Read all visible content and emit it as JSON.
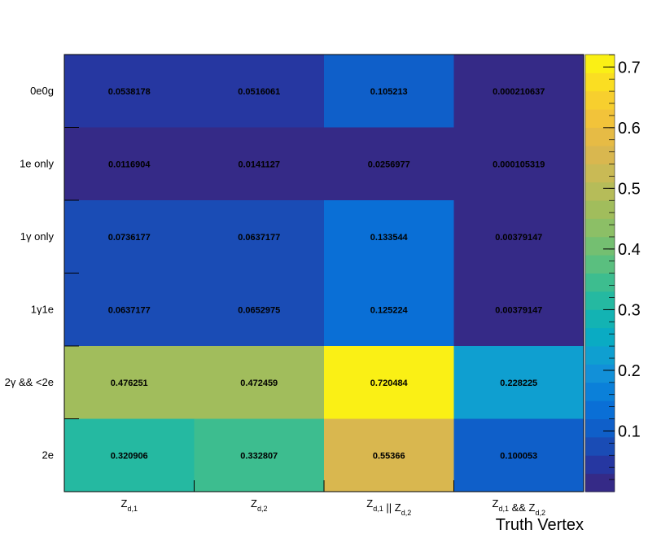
{
  "chart_data": {
    "type": "heatmap",
    "title": "",
    "xlabel": "Truth Vertex",
    "ylabel": "",
    "x_categories": [
      {
        "main": "Z",
        "sub": "d,1",
        "label": "Z_{d,1}"
      },
      {
        "main": "Z",
        "sub": "d,2",
        "label": "Z_{d,2}"
      },
      {
        "parts": [
          [
            "Z",
            "d,1"
          ],
          [
            " || Z",
            "d,2"
          ]
        ],
        "label": "Z_{d,1} || Z_{d,2}"
      },
      {
        "parts": [
          [
            "Z",
            "d,1"
          ],
          [
            " && Z",
            "d,2"
          ]
        ],
        "label": "Z_{d,1} && Z_{d,2}"
      }
    ],
    "y_categories": [
      "0e0g",
      "1e only",
      "1γ only",
      "1γ1e",
      "2γ && <2e",
      "2e"
    ],
    "values": [
      [
        "0.0538178",
        "0.0516061",
        "0.105213",
        "0.000210637"
      ],
      [
        "0.0116904",
        "0.0141127",
        "0.0256977",
        "0.000105319"
      ],
      [
        "0.0736177",
        "0.0637177",
        "0.133544",
        "0.00379147"
      ],
      [
        "0.0637177",
        "0.0652975",
        "0.125224",
        "0.00379147"
      ],
      [
        "0.476251",
        "0.472459",
        "0.720484",
        "0.228225"
      ],
      [
        "0.320906",
        "0.332807",
        "0.55366",
        "0.100053"
      ]
    ],
    "zlim": [
      0,
      0.7205
    ],
    "z_ticks": [
      "0.1",
      "0.2",
      "0.3",
      "0.4",
      "0.5",
      "0.6",
      "0.7"
    ],
    "colormap": [
      "#352a87",
      "#2637a1",
      "#1a4cb5",
      "#0f5fc9",
      "#0a6fd6",
      "#0b80d9",
      "#1290d8",
      "#0f9fd0",
      "#0aabc3",
      "#13b3b3",
      "#25b9a1",
      "#3dbd8f",
      "#5abf7f",
      "#74bf71",
      "#8cbf66",
      "#a1bd5c",
      "#b6bc59",
      "#c9ba55",
      "#d9b74f",
      "#e6bb45",
      "#f2c33a",
      "#f7cf2e",
      "#fade22",
      "#faf015"
    ],
    "grid": false,
    "legend": "color-bar-right"
  }
}
